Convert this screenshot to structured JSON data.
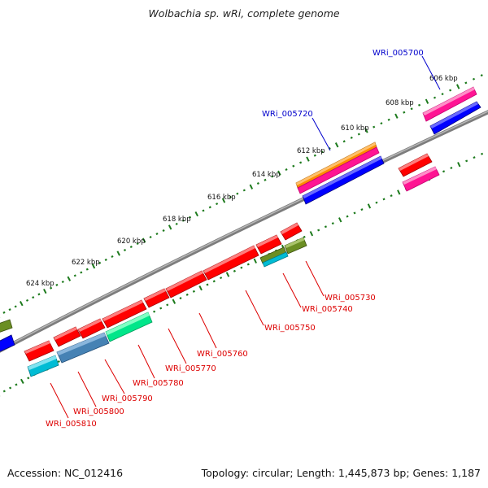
{
  "title": "Wolbachia sp. wRi, complete genome",
  "footer": {
    "accession": "Accession: NC_012416",
    "topology": "Topology: circular; Length: 1,445,873 bp; Genes: 1,187"
  },
  "colors": {
    "backbone": "#8a8a8a",
    "tick": "#1c7a1c",
    "label_forward": "#0000cc",
    "label_reverse": "#dd0000"
  },
  "scale_labels": [
    "606 kbp",
    "608 kbp",
    "610 kbp",
    "612 kbp",
    "614 kbp",
    "616 kbp",
    "618 kbp",
    "620 kbp",
    "622 kbp",
    "624 kbp"
  ],
  "gene_labels": [
    {
      "text": "WRi_005700",
      "strand": "forward"
    },
    {
      "text": "WRi_005720",
      "strand": "forward"
    },
    {
      "text": "WRi_005730",
      "strand": "reverse"
    },
    {
      "text": "WRi_005740",
      "strand": "reverse"
    },
    {
      "text": "WRi_005750",
      "strand": "reverse"
    },
    {
      "text": "WRi_005760",
      "strand": "reverse"
    },
    {
      "text": "WRi_005770",
      "strand": "reverse"
    },
    {
      "text": "WRi_005780",
      "strand": "reverse"
    },
    {
      "text": "WRi_005790",
      "strand": "reverse"
    },
    {
      "text": "WRi_005800",
      "strand": "reverse"
    },
    {
      "text": "WRi_005810",
      "strand": "reverse"
    }
  ],
  "feature_colors": [
    "#ff0000",
    "#ff1493",
    "#0000ff",
    "#ff8c00",
    "#6b8e23",
    "#00bcd4",
    "#4682b4",
    "#00e68a"
  ]
}
